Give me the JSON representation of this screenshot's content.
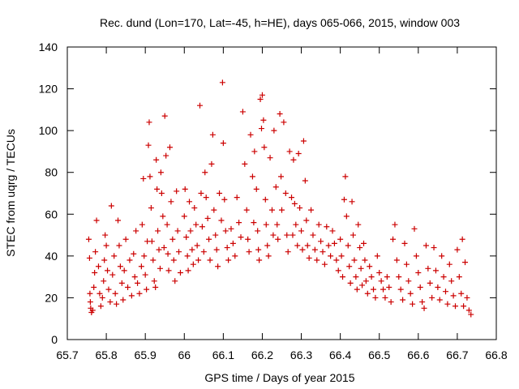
{
  "chart_data": {
    "type": "scatter",
    "title": "Rec. dund (Lon=170, Lat=-45, h=HE), days 065-066, 2015, window 003",
    "xlabel": "GPS time / Days of year 2015",
    "ylabel": "STEC from uqrg / TECUs",
    "xlim": [
      65.7,
      66.8
    ],
    "ylim": [
      0,
      140
    ],
    "xticks": [
      "65.7",
      "65.8",
      "65.9",
      "66",
      "66.1",
      "66.2",
      "66.3",
      "66.4",
      "66.5",
      "66.6",
      "66.7",
      "66.8"
    ],
    "yticks": [
      "0",
      "20",
      "40",
      "60",
      "80",
      "100",
      "120",
      "140"
    ],
    "grid": false,
    "legend": "none",
    "marker": "+",
    "color": "#cc0000",
    "series": [
      {
        "points": [
          [
            65.755,
            48
          ],
          [
            65.757,
            39
          ],
          [
            65.758,
            22
          ],
          [
            65.759,
            18
          ],
          [
            65.76,
            15
          ],
          [
            65.762,
            13
          ],
          [
            65.765,
            14
          ],
          [
            65.768,
            25
          ],
          [
            65.77,
            32
          ],
          [
            65.772,
            42
          ],
          [
            65.775,
            57
          ],
          [
            65.78,
            35
          ],
          [
            65.783,
            22
          ],
          [
            65.786,
            16
          ],
          [
            65.79,
            20
          ],
          [
            65.793,
            28
          ],
          [
            65.795,
            38
          ],
          [
            65.797,
            50
          ],
          [
            65.8,
            45
          ],
          [
            65.803,
            33
          ],
          [
            65.806,
            24
          ],
          [
            65.81,
            18
          ],
          [
            65.813,
            64
          ],
          [
            65.816,
            31
          ],
          [
            65.82,
            40
          ],
          [
            65.823,
            22
          ],
          [
            65.826,
            17
          ],
          [
            65.83,
            57
          ],
          [
            65.833,
            45
          ],
          [
            65.836,
            35
          ],
          [
            65.84,
            27
          ],
          [
            65.843,
            19
          ],
          [
            65.846,
            33
          ],
          [
            65.85,
            48
          ],
          [
            65.855,
            25
          ],
          [
            65.86,
            38
          ],
          [
            65.865,
            21
          ],
          [
            65.87,
            41
          ],
          [
            65.873,
            30
          ],
          [
            65.876,
            52
          ],
          [
            65.88,
            27
          ],
          [
            65.885,
            22
          ],
          [
            65.89,
            35
          ],
          [
            65.892,
            55
          ],
          [
            65.895,
            77
          ],
          [
            65.897,
            40
          ],
          [
            65.9,
            31
          ],
          [
            65.903,
            24
          ],
          [
            65.905,
            47
          ],
          [
            65.908,
            93
          ],
          [
            65.91,
            104
          ],
          [
            65.912,
            78
          ],
          [
            65.915,
            63
          ],
          [
            65.917,
            47
          ],
          [
            65.92,
            38
          ],
          [
            65.923,
            28
          ],
          [
            65.926,
            25
          ],
          [
            65.928,
            86
          ],
          [
            65.93,
            72
          ],
          [
            65.932,
            52
          ],
          [
            65.935,
            43
          ],
          [
            65.938,
            34
          ],
          [
            65.94,
            80
          ],
          [
            65.942,
            70
          ],
          [
            65.945,
            59
          ],
          [
            65.948,
            44
          ],
          [
            65.95,
            107
          ],
          [
            65.953,
            88
          ],
          [
            65.956,
            55
          ],
          [
            65.958,
            41
          ],
          [
            65.96,
            33
          ],
          [
            65.963,
            92
          ],
          [
            65.966,
            66
          ],
          [
            65.97,
            48
          ],
          [
            65.973,
            38
          ],
          [
            65.976,
            28
          ],
          [
            65.98,
            71
          ],
          [
            65.983,
            52
          ],
          [
            65.986,
            42
          ],
          [
            65.99,
            32
          ],
          [
            66.0,
            59
          ],
          [
            66.002,
            72
          ],
          [
            66.005,
            49
          ],
          [
            66.008,
            40
          ],
          [
            66.01,
            33
          ],
          [
            66.013,
            66
          ],
          [
            66.016,
            52
          ],
          [
            66.02,
            43
          ],
          [
            66.023,
            36
          ],
          [
            66.026,
            63
          ],
          [
            66.03,
            55
          ],
          [
            66.033,
            45
          ],
          [
            66.036,
            38
          ],
          [
            66.04,
            112
          ],
          [
            66.043,
            70
          ],
          [
            66.046,
            54
          ],
          [
            66.05,
            42
          ],
          [
            66.053,
            80
          ],
          [
            66.056,
            68
          ],
          [
            66.06,
            58
          ],
          [
            66.063,
            48
          ],
          [
            66.066,
            38
          ],
          [
            66.07,
            84
          ],
          [
            66.073,
            98
          ],
          [
            66.076,
            62
          ],
          [
            66.08,
            50
          ],
          [
            66.083,
            43
          ],
          [
            66.086,
            35
          ],
          [
            66.09,
            70
          ],
          [
            66.095,
            57
          ],
          [
            66.098,
            123
          ],
          [
            66.1,
            94
          ],
          [
            66.103,
            67
          ],
          [
            66.106,
            52
          ],
          [
            66.11,
            44
          ],
          [
            66.113,
            38
          ],
          [
            66.12,
            53
          ],
          [
            66.125,
            46
          ],
          [
            66.13,
            40
          ],
          [
            66.135,
            68
          ],
          [
            66.14,
            56
          ],
          [
            66.145,
            49
          ],
          [
            66.15,
            109
          ],
          [
            66.155,
            84
          ],
          [
            66.16,
            62
          ],
          [
            66.163,
            48
          ],
          [
            66.166,
            42
          ],
          [
            66.17,
            98
          ],
          [
            66.175,
            78
          ],
          [
            66.178,
            56
          ],
          [
            66.18,
            90
          ],
          [
            66.185,
            72
          ],
          [
            66.188,
            52
          ],
          [
            66.19,
            43
          ],
          [
            66.192,
            38
          ],
          [
            66.195,
            115
          ],
          [
            66.198,
            101
          ],
          [
            66.2,
            117
          ],
          [
            66.203,
            105
          ],
          [
            66.205,
            92
          ],
          [
            66.208,
            67
          ],
          [
            66.21,
            55
          ],
          [
            66.213,
            45
          ],
          [
            66.216,
            40
          ],
          [
            66.22,
            87
          ],
          [
            66.225,
            62
          ],
          [
            66.228,
            50
          ],
          [
            66.23,
            100
          ],
          [
            66.235,
            73
          ],
          [
            66.238,
            55
          ],
          [
            66.24,
            48
          ],
          [
            66.245,
            108
          ],
          [
            66.248,
            78
          ],
          [
            66.25,
            62
          ],
          [
            66.255,
            104
          ],
          [
            66.26,
            70
          ],
          [
            66.263,
            50
          ],
          [
            66.266,
            42
          ],
          [
            66.27,
            90
          ],
          [
            66.275,
            68
          ],
          [
            66.278,
            50
          ],
          [
            66.28,
            86
          ],
          [
            66.283,
            65
          ],
          [
            66.286,
            55
          ],
          [
            66.29,
            45
          ],
          [
            66.293,
            89
          ],
          [
            66.296,
            63
          ],
          [
            66.3,
            52
          ],
          [
            66.303,
            43
          ],
          [
            66.306,
            95
          ],
          [
            66.31,
            76
          ],
          [
            66.313,
            57
          ],
          [
            66.316,
            45
          ],
          [
            66.32,
            39
          ],
          [
            66.325,
            62
          ],
          [
            66.33,
            50
          ],
          [
            66.335,
            43
          ],
          [
            66.34,
            38
          ],
          [
            66.345,
            55
          ],
          [
            66.35,
            47
          ],
          [
            66.355,
            42
          ],
          [
            66.36,
            36
          ],
          [
            66.365,
            54
          ],
          [
            66.37,
            45
          ],
          [
            66.375,
            40
          ],
          [
            66.38,
            52
          ],
          [
            66.385,
            46
          ],
          [
            66.39,
            38
          ],
          [
            66.395,
            33
          ],
          [
            66.4,
            48
          ],
          [
            66.403,
            40
          ],
          [
            66.406,
            30
          ],
          [
            66.41,
            67
          ],
          [
            66.413,
            78
          ],
          [
            66.416,
            59
          ],
          [
            66.42,
            45
          ],
          [
            66.423,
            35
          ],
          [
            66.426,
            27
          ],
          [
            66.43,
            66
          ],
          [
            66.433,
            50
          ],
          [
            66.436,
            38
          ],
          [
            66.44,
            30
          ],
          [
            66.443,
            24
          ],
          [
            66.446,
            55
          ],
          [
            66.45,
            44
          ],
          [
            66.453,
            34
          ],
          [
            66.456,
            26
          ],
          [
            66.46,
            46
          ],
          [
            66.463,
            38
          ],
          [
            66.466,
            28
          ],
          [
            66.47,
            22
          ],
          [
            66.475,
            35
          ],
          [
            66.48,
            30
          ],
          [
            66.485,
            24
          ],
          [
            66.49,
            20
          ],
          [
            66.495,
            40
          ],
          [
            66.5,
            32
          ],
          [
            66.505,
            28
          ],
          [
            66.51,
            24
          ],
          [
            66.515,
            20
          ],
          [
            66.52,
            30
          ],
          [
            66.525,
            25
          ],
          [
            66.53,
            18
          ],
          [
            66.535,
            48
          ],
          [
            66.54,
            55
          ],
          [
            66.545,
            38
          ],
          [
            66.55,
            30
          ],
          [
            66.555,
            24
          ],
          [
            66.56,
            19
          ],
          [
            66.565,
            46
          ],
          [
            66.57,
            36
          ],
          [
            66.575,
            28
          ],
          [
            66.58,
            22
          ],
          [
            66.585,
            17
          ],
          [
            66.59,
            53
          ],
          [
            66.595,
            40
          ],
          [
            66.6,
            32
          ],
          [
            66.605,
            25
          ],
          [
            66.61,
            18
          ],
          [
            66.615,
            15
          ],
          [
            66.62,
            45
          ],
          [
            66.625,
            34
          ],
          [
            66.63,
            27
          ],
          [
            66.635,
            20
          ],
          [
            66.64,
            44
          ],
          [
            66.645,
            33
          ],
          [
            66.65,
            25
          ],
          [
            66.655,
            19
          ],
          [
            66.66,
            40
          ],
          [
            66.665,
            30
          ],
          [
            66.67,
            23
          ],
          [
            66.675,
            17
          ],
          [
            66.68,
            36
          ],
          [
            66.685,
            28
          ],
          [
            66.69,
            21
          ],
          [
            66.695,
            16
          ],
          [
            66.7,
            43
          ],
          [
            66.705,
            30
          ],
          [
            66.71,
            22
          ],
          [
            66.713,
            48
          ],
          [
            66.716,
            16
          ],
          [
            66.72,
            37
          ],
          [
            66.725,
            20
          ],
          [
            66.73,
            14
          ],
          [
            66.735,
            12
          ]
        ]
      }
    ]
  }
}
